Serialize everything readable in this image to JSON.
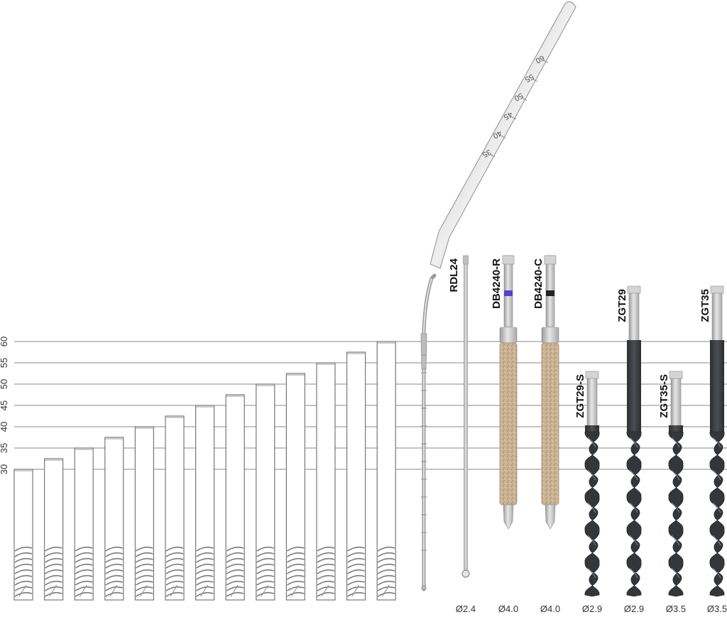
{
  "scale": {
    "ticks": [
      "30",
      "35",
      "40",
      "45",
      "50",
      "55",
      "60"
    ]
  },
  "implants": [
    {
      "length": 30
    },
    {
      "length": 32.5
    },
    {
      "length": 35
    },
    {
      "length": 37.5
    },
    {
      "length": 40
    },
    {
      "length": 42.5
    },
    {
      "length": 45
    },
    {
      "length": 47.5
    },
    {
      "length": 50
    },
    {
      "length": 52.5
    },
    {
      "length": 55
    },
    {
      "length": 57.5
    },
    {
      "length": 60
    }
  ],
  "probe": {
    "marks": [
      "35",
      "40",
      "45",
      "50",
      "55",
      "60"
    ]
  },
  "tools": [
    {
      "label": "RDL24",
      "diameter": "Ø2.4",
      "kind": "rod"
    },
    {
      "label": "DB4240-R",
      "diameter": "Ø4.0",
      "kind": "diamond",
      "band_color": "#5b3fd1"
    },
    {
      "label": "DB4240-C",
      "diameter": "Ø4.0",
      "kind": "diamond",
      "band_color": "#222222"
    },
    {
      "label": "ZGT29-S",
      "diameter": "Ø2.9",
      "kind": "drill",
      "top": 40
    },
    {
      "label": "ZGT29",
      "diameter": "Ø2.9",
      "kind": "drill",
      "top": 60
    },
    {
      "label": "ZGT35-S",
      "diameter": "Ø3.5",
      "kind": "drill",
      "top": 40
    },
    {
      "label": "ZGT35",
      "diameter": "Ø3.5",
      "kind": "drill",
      "top": 60
    }
  ],
  "colors": {
    "line": "#8a8a8a",
    "steel": "#c9c9c9",
    "drill": "#3a3d40",
    "diamond": "#cbb394"
  }
}
